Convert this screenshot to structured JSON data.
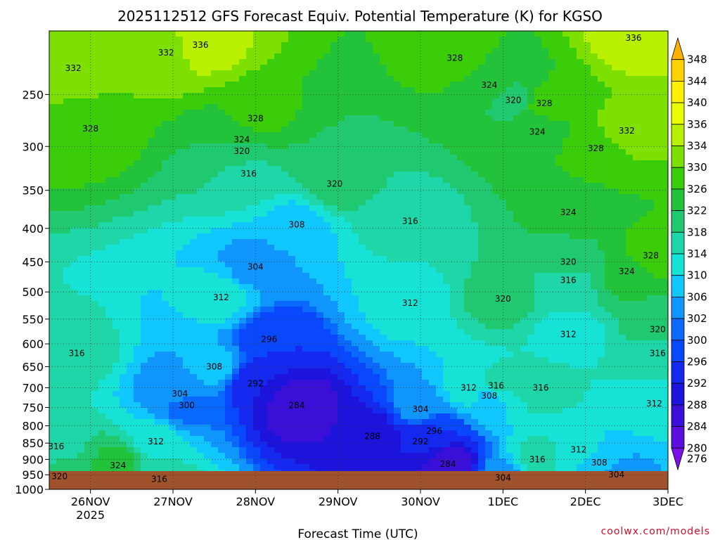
{
  "chart_data": {
    "type": "heatmap",
    "title": "2025112512 GFS Forecast Equiv. Potential Temperature (K) for KGSO",
    "xlabel": "Forecast Time (UTC)",
    "ylabel": "",
    "credit": "coolwx.com/models",
    "x_ticks": [
      "26NOV",
      "27NOV",
      "28NOV",
      "29NOV",
      "30NOV",
      "1DEC",
      "2DEC",
      "3DEC"
    ],
    "x_sublabel": "2025",
    "xlim": [
      "2025-11-25 12:00",
      "2025-12-03 00:00"
    ],
    "y_ticks": [
      250,
      300,
      350,
      400,
      450,
      500,
      550,
      600,
      650,
      700,
      750,
      800,
      850,
      900,
      950,
      1000
    ],
    "ylim": [
      200,
      1000
    ],
    "y_scale": "log-pressure (inverted)",
    "grid": true,
    "colorbar": {
      "levels": [
        348,
        344,
        340,
        336,
        334,
        330,
        326,
        322,
        318,
        314,
        310,
        306,
        302,
        300,
        296,
        292,
        288,
        284,
        280,
        276
      ],
      "colors": [
        "#ffb000",
        "#ffd200",
        "#fff000",
        "#e8ff00",
        "#b8f000",
        "#7ee000",
        "#3ccd0a",
        "#22c23a",
        "#20c870",
        "#1fd6a8",
        "#16e2d6",
        "#10c8ff",
        "#1096ff",
        "#0a6aff",
        "#0a48ff",
        "#1428f0",
        "#1c14dc",
        "#3a10d8",
        "#5a0ee0",
        "#7a10e8"
      ]
    },
    "contour_labels": [
      {
        "value": 336,
        "time": "2025-11-27 08:00",
        "p": 210
      },
      {
        "value": 332,
        "time": "2025-11-25 19:00",
        "p": 228
      },
      {
        "value": 332,
        "time": "2025-11-26 22:00",
        "p": 216
      },
      {
        "value": 328,
        "time": "2025-11-26 00:00",
        "p": 282
      },
      {
        "value": 328,
        "time": "2025-11-28 00:00",
        "p": 272
      },
      {
        "value": 324,
        "time": "2025-11-27 20:00",
        "p": 293
      },
      {
        "value": 320,
        "time": "2025-11-27 20:00",
        "p": 305
      },
      {
        "value": 316,
        "time": "2025-11-27 22:00",
        "p": 330
      },
      {
        "value": 320,
        "time": "2025-11-28 23:00",
        "p": 342
      },
      {
        "value": 328,
        "time": "2025-11-30 10:00",
        "p": 220
      },
      {
        "value": 324,
        "time": "2025-11-30 20:00",
        "p": 242
      },
      {
        "value": 320,
        "time": "2025-12-01 03:00",
        "p": 255
      },
      {
        "value": 328,
        "time": "2025-12-01 12:00",
        "p": 258
      },
      {
        "value": 336,
        "time": "2025-12-02 14:00",
        "p": 205
      },
      {
        "value": 332,
        "time": "2025-12-02 12:00",
        "p": 284
      },
      {
        "value": 324,
        "time": "2025-12-01 10:00",
        "p": 285
      },
      {
        "value": 328,
        "time": "2025-12-02 03:00",
        "p": 302
      },
      {
        "value": 308,
        "time": "2025-11-28 12:00",
        "p": 395
      },
      {
        "value": 316,
        "time": "2025-11-29 21:00",
        "p": 390
      },
      {
        "value": 324,
        "time": "2025-12-01 19:00",
        "p": 378
      },
      {
        "value": 304,
        "time": "2025-11-28 00:00",
        "p": 458
      },
      {
        "value": 320,
        "time": "2025-12-01 19:00",
        "p": 450
      },
      {
        "value": 328,
        "time": "2025-12-02 19:00",
        "p": 440
      },
      {
        "value": 324,
        "time": "2025-12-02 12:00",
        "p": 465
      },
      {
        "value": 316,
        "time": "2025-12-01 19:00",
        "p": 480
      },
      {
        "value": 312,
        "time": "2025-11-27 14:00",
        "p": 510
      },
      {
        "value": 312,
        "time": "2025-11-29 21:00",
        "p": 520
      },
      {
        "value": 320,
        "time": "2025-12-01 00:00",
        "p": 512
      },
      {
        "value": 320,
        "time": "2025-12-02 21:00",
        "p": 570
      },
      {
        "value": 312,
        "time": "2025-12-01 19:00",
        "p": 580
      },
      {
        "value": 316,
        "time": "2025-12-02 21:00",
        "p": 620
      },
      {
        "value": 296,
        "time": "2025-11-28 04:00",
        "p": 590
      },
      {
        "value": 316,
        "time": "2025-11-25 20:00",
        "p": 620
      },
      {
        "value": 308,
        "time": "2025-11-27 12:00",
        "p": 650
      },
      {
        "value": 292,
        "time": "2025-11-28 00:00",
        "p": 690
      },
      {
        "value": 304,
        "time": "2025-11-27 02:00",
        "p": 715
      },
      {
        "value": 300,
        "time": "2025-11-27 04:00",
        "p": 745
      },
      {
        "value": 284,
        "time": "2025-11-28 12:00",
        "p": 745
      },
      {
        "value": 312,
        "time": "2025-11-30 14:00",
        "p": 700
      },
      {
        "value": 316,
        "time": "2025-11-30 22:00",
        "p": 695
      },
      {
        "value": 308,
        "time": "2025-11-30 20:00",
        "p": 720
      },
      {
        "value": 316,
        "time": "2025-12-01 11:00",
        "p": 700
      },
      {
        "value": 312,
        "time": "2025-12-02 20:00",
        "p": 740
      },
      {
        "value": 304,
        "time": "2025-11-30 00:00",
        "p": 755
      },
      {
        "value": 288,
        "time": "2025-11-29 10:00",
        "p": 830
      },
      {
        "value": 296,
        "time": "2025-11-30 04:00",
        "p": 815
      },
      {
        "value": 292,
        "time": "2025-11-30 00:00",
        "p": 845
      },
      {
        "value": 312,
        "time": "2025-11-26 19:00",
        "p": 845
      },
      {
        "value": 316,
        "time": "2025-11-25 14:00",
        "p": 860
      },
      {
        "value": 324,
        "time": "2025-11-26 08:00",
        "p": 920
      },
      {
        "value": 320,
        "time": "2025-11-25 15:00",
        "p": 955
      },
      {
        "value": 316,
        "time": "2025-11-26 20:00",
        "p": 965
      },
      {
        "value": 284,
        "time": "2025-11-30 08:00",
        "p": 915
      },
      {
        "value": 304,
        "time": "2025-12-01 00:00",
        "p": 960
      },
      {
        "value": 316,
        "time": "2025-12-01 10:00",
        "p": 900
      },
      {
        "value": 312,
        "time": "2025-12-01 22:00",
        "p": 870
      },
      {
        "value": 308,
        "time": "2025-12-02 04:00",
        "p": 910
      },
      {
        "value": 304,
        "time": "2025-12-02 09:00",
        "p": 950
      }
    ]
  }
}
